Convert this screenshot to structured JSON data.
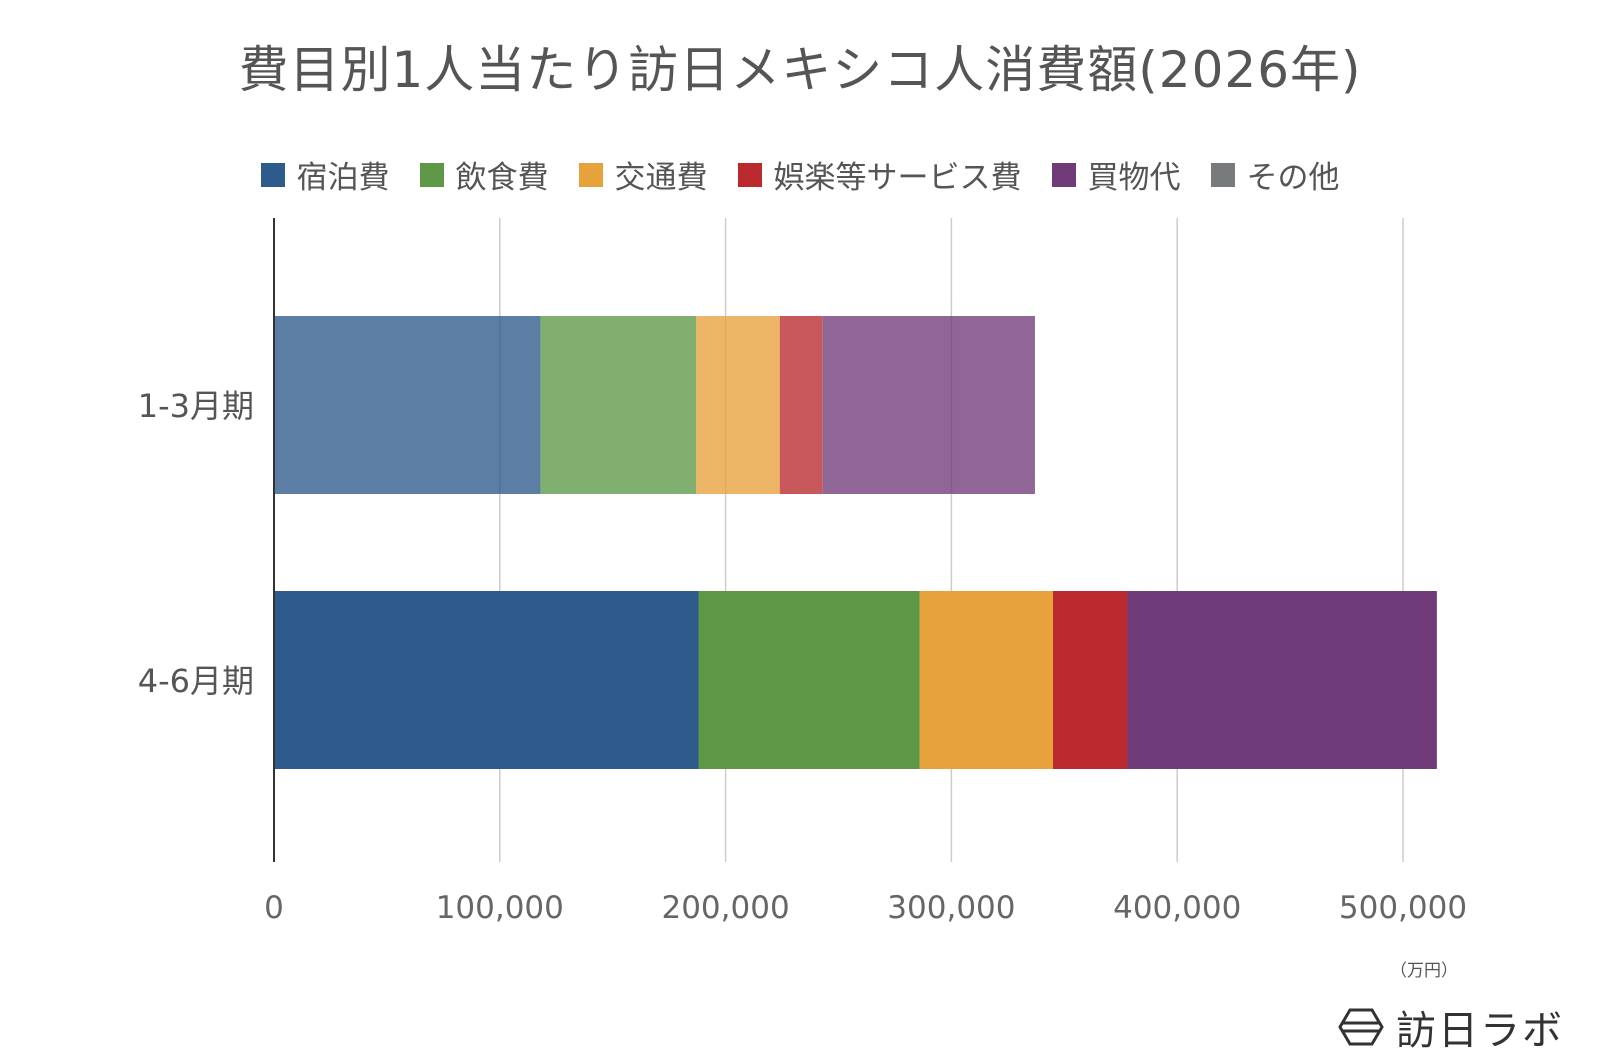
{
  "chart_data": {
    "type": "bar",
    "orientation": "horizontal",
    "stacked": true,
    "title": "費目別1人当たり訪日メキシコ人消費額(2026年)",
    "categories": [
      "1-3月期",
      "4-6月期"
    ],
    "series": [
      {
        "name": "宿泊費",
        "color": "#2e5a8c",
        "values": [
          118000,
          188000
        ]
      },
      {
        "name": "飲食費",
        "color": "#5e9846",
        "values": [
          69000,
          98000
        ]
      },
      {
        "name": "交通費",
        "color": "#e8a23c",
        "values": [
          37000,
          59000
        ]
      },
      {
        "name": "娯楽等サービス費",
        "color": "#b9292e",
        "values": [
          19000,
          33000
        ]
      },
      {
        "name": "買物代",
        "color": "#6f3b79",
        "values": [
          94000,
          137000
        ]
      },
      {
        "name": "その他",
        "color": "#777b7b",
        "values": [
          0,
          0
        ]
      }
    ],
    "bar_opacity": [
      0.78,
      1
    ],
    "xlim": [
      0,
      500000
    ],
    "xticks": [
      0,
      100000,
      200000,
      300000,
      400000,
      500000
    ],
    "xtick_labels": [
      "0",
      "100,000",
      "200,000",
      "300,000",
      "400,000",
      "500,000"
    ],
    "unit_label": "（万円）",
    "grid": true,
    "legend_position": "top"
  },
  "branding": {
    "logo_text": "訪日ラボ"
  }
}
